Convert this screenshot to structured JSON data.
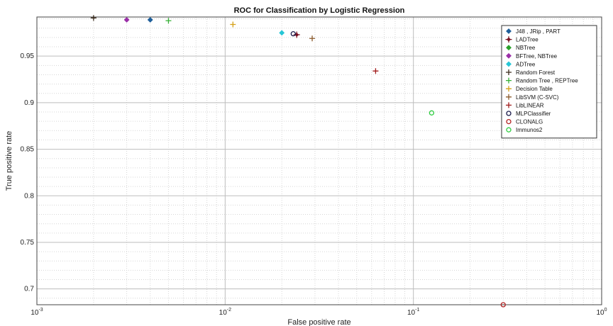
{
  "chart_data": {
    "type": "scatter",
    "title": "ROC for Classification by Logistic Regression",
    "xlabel": "False positive rate",
    "ylabel": "True positive rate",
    "xscale": "log",
    "xlim": [
      0.001,
      1
    ],
    "ylim": [
      0.683,
      0.992
    ],
    "grid": true,
    "legend_position": "top-right",
    "x_ticks": [
      {
        "value": 0.001,
        "label": "10",
        "exp": "-3"
      },
      {
        "value": 0.01,
        "label": "10",
        "exp": "-2"
      },
      {
        "value": 0.1,
        "label": "10",
        "exp": "-1"
      },
      {
        "value": 1,
        "label": "10",
        "exp": "0"
      }
    ],
    "y_ticks": [
      {
        "value": 0.7,
        "label": "0.7"
      },
      {
        "value": 0.75,
        "label": "0.75"
      },
      {
        "value": 0.8,
        "label": "0.8"
      },
      {
        "value": 0.85,
        "label": "0.85"
      },
      {
        "value": 0.9,
        "label": "0.9"
      },
      {
        "value": 0.95,
        "label": "0.95"
      }
    ],
    "series": [
      {
        "name": "J48 , JRip , PART",
        "marker": "diamond",
        "color": "#1f5f9a",
        "points": [
          [
            0.004,
            0.989
          ]
        ]
      },
      {
        "name": "LADTree",
        "marker": "plus-diamond",
        "color": "#7a1020",
        "points": [
          [
            0.024,
            0.973
          ]
        ]
      },
      {
        "name": "NBTree",
        "marker": "diamond",
        "color": "#2aa02a",
        "points": []
      },
      {
        "name": "BFTree, NBTree",
        "marker": "diamond",
        "color": "#9b2fa8",
        "points": [
          [
            0.003,
            0.989
          ]
        ]
      },
      {
        "name": "ADTree",
        "marker": "diamond",
        "color": "#26c6d6",
        "points": [
          [
            0.02,
            0.975
          ]
        ]
      },
      {
        "name": "Random Forest",
        "marker": "plus",
        "color": "#3a2a1a",
        "points": [
          [
            0.002,
            0.991
          ]
        ]
      },
      {
        "name": "Random Tree , REPTree",
        "marker": "plus",
        "color": "#35b035",
        "points": [
          [
            0.005,
            0.988
          ]
        ]
      },
      {
        "name": "Decision Table",
        "marker": "plus",
        "color": "#d4a017",
        "points": [
          [
            0.011,
            0.984
          ]
        ]
      },
      {
        "name": "LibSVM (C-SVC)",
        "marker": "plus",
        "color": "#8b5a2b",
        "points": [
          [
            0.029,
            0.969
          ]
        ]
      },
      {
        "name": "LibLINEAR",
        "marker": "plus",
        "color": "#a01a1a",
        "points": [
          [
            0.063,
            0.934
          ]
        ]
      },
      {
        "name": "MLPClassifier",
        "marker": "circle",
        "color": "#1a1a4a",
        "points": [
          [
            0.023,
            0.974
          ]
        ]
      },
      {
        "name": "CLONALG",
        "marker": "circle",
        "color": "#b22222",
        "points": [
          [
            0.3,
            0.683
          ]
        ]
      },
      {
        "name": "Immunos2",
        "marker": "circle",
        "color": "#2ecc40",
        "points": [
          [
            0.125,
            0.889
          ]
        ]
      }
    ]
  }
}
